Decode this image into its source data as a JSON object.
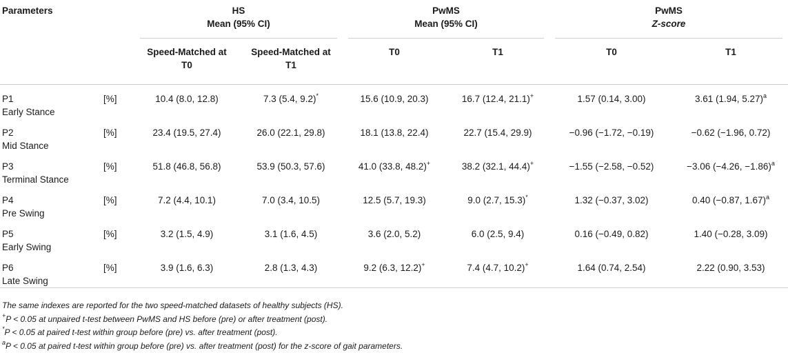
{
  "header": {
    "parameters": "Parameters",
    "groups": [
      {
        "line1": "HS",
        "line2": "Mean (95% CI)"
      },
      {
        "line1": "PwMS",
        "line2": "Mean (95% CI)"
      },
      {
        "line1": "PwMS",
        "line2": "Z-score"
      }
    ],
    "subcols": {
      "hs_t0": "Speed-Matched at T0",
      "hs_t1": "Speed-Matched at T1",
      "pw_t0": "T0",
      "pw_t1": "T1",
      "z_t0": "T0",
      "z_t1": "T1"
    }
  },
  "rows": [
    {
      "code": "P1",
      "phase": "Early Stance",
      "unit": "[%]",
      "hs_t0": "10.4 (8.0, 12.8)",
      "hs_t1": "7.3 (5.4, 9.2)",
      "hs_t1_sup": "*",
      "pw_t0": "15.6 (10.9, 20.3)",
      "pw_t0_sup": "",
      "pw_t1": "16.7 (12.4, 21.1)",
      "pw_t1_sup": "+",
      "z_t0": "1.57 (0.14, 3.00)",
      "z_t1": "3.61 (1.94, 5.27)",
      "z_t1_sup": "a"
    },
    {
      "code": "P2",
      "phase": "Mid Stance",
      "unit": "[%]",
      "hs_t0": "23.4 (19.5, 27.4)",
      "hs_t1": "26.0 (22.1, 29.8)",
      "hs_t1_sup": "",
      "pw_t0": "18.1 (13.8, 22.4)",
      "pw_t0_sup": "",
      "pw_t1": "22.7 (15.4, 29.9)",
      "pw_t1_sup": "",
      "z_t0": "−0.96 (−1.72, −0.19)",
      "z_t1": "−0.62 (−1.96, 0.72)",
      "z_t1_sup": ""
    },
    {
      "code": "P3",
      "phase": "Terminal Stance",
      "unit": "[%]",
      "hs_t0": "51.8 (46.8, 56.8)",
      "hs_t1": "53.9 (50.3, 57.6)",
      "hs_t1_sup": "",
      "pw_t0": "41.0 (33.8, 48.2)",
      "pw_t0_sup": "+",
      "pw_t1": "38.2 (32.1, 44.4)",
      "pw_t1_sup": "+",
      "z_t0": "−1.55 (−2.58, −0.52)",
      "z_t1": "−3.06 (−4.26, −1.86)",
      "z_t1_sup": "a"
    },
    {
      "code": "P4",
      "phase": "Pre Swing",
      "unit": "[%]",
      "hs_t0": "7.2 (4.4, 10.1)",
      "hs_t1": "7.0 (3.4, 10.5)",
      "hs_t1_sup": "",
      "pw_t0": "12.5 (5.7, 19.3)",
      "pw_t0_sup": "",
      "pw_t1": "9.0 (2.7, 15.3)",
      "pw_t1_sup": "*",
      "z_t0": "1.32 (−0.37, 3.02)",
      "z_t1": "0.40 (−0.87, 1.67)",
      "z_t1_sup": "a"
    },
    {
      "code": "P5",
      "phase": "Early Swing",
      "unit": "[%]",
      "hs_t0": "3.2 (1.5, 4.9)",
      "hs_t1": "3.1 (1.6, 4.5)",
      "hs_t1_sup": "",
      "pw_t0": "3.6 (2.0, 5.2)",
      "pw_t0_sup": "",
      "pw_t1": "6.0 (2.5, 9.4)",
      "pw_t1_sup": "",
      "z_t0": "0.16 (−0.49, 0.82)",
      "z_t1": "1.40 (−0.28, 3.09)",
      "z_t1_sup": ""
    },
    {
      "code": "P6",
      "phase": "Late Swing",
      "unit": "[%]",
      "hs_t0": "3.9 (1.6, 6.3)",
      "hs_t1": "2.8 (1.3, 4.3)",
      "hs_t1_sup": "",
      "pw_t0": "9.2 (6.3, 12.2)",
      "pw_t0_sup": "+",
      "pw_t1": "7.4 (4.7, 10.2)",
      "pw_t1_sup": "+",
      "z_t0": "1.64 (0.74, 2.54)",
      "z_t1": "2.22 (0.90, 3.53)",
      "z_t1_sup": ""
    }
  ],
  "notes": {
    "n1": "The same indexes are reported for the two speed-matched datasets of healthy subjects (HS).",
    "n2_mark": "+",
    "n2": "P < 0.05 at unpaired t-test between PwMS and HS before (pre) or after treatment (post).",
    "n3_mark": "*",
    "n3": "P < 0.05 at paired t-test within group before (pre) vs. after treatment (post).",
    "n4_mark": "a",
    "n4": "P < 0.05 at paired t-test within group before (pre) vs. after treatment (post) for the z-score of gait parameters."
  }
}
